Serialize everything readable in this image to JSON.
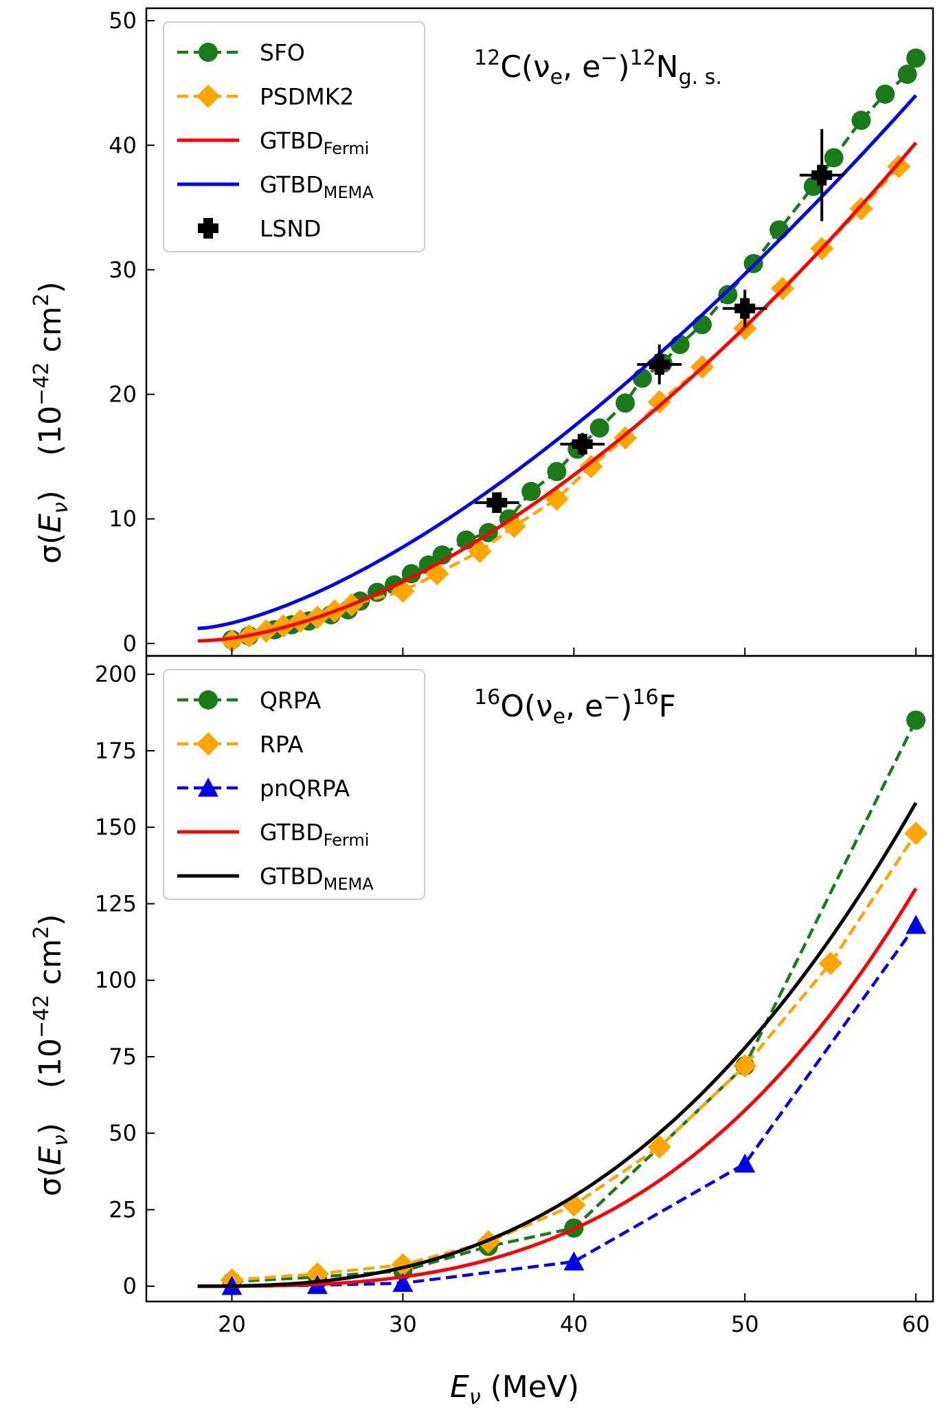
{
  "chart_data": [
    {
      "type": "line",
      "title": "12C(νe, e−)12Ng. s.",
      "title_parts": {
        "mass_a": "12",
        "nucleus_a": "C(",
        "nu": "ν",
        "nu_sub": "e",
        "mid": ", e",
        "minus": "−",
        "close": ")",
        "mass_b": "12",
        "nucleus_b": "N",
        "state": "g. s."
      },
      "ylabel": {
        "left": "σ(",
        "var": "E",
        "var_sub": "ν",
        "right": ")",
        "unit_a": "(10",
        "unit_exp": "−42",
        "unit_b": " cm",
        "unit_exp2": "2",
        "unit_c": ")"
      },
      "xlim": [
        15,
        61
      ],
      "ylim": [
        -1,
        51
      ],
      "yticks": [
        "0",
        "10",
        "20",
        "30",
        "40",
        "50"
      ],
      "grid": false,
      "legend_position": "top-left",
      "series": [
        {
          "name": "SFO",
          "style": "dashed-circle",
          "color": "#1a7a1a",
          "x": [
            20.0,
            21.0,
            22.5,
            23.5,
            24.5,
            25.8,
            26.8,
            27.5,
            28.5,
            29.5,
            30.5,
            31.5,
            32.3,
            33.7,
            35.0,
            36.2,
            37.5,
            39.0,
            40.2,
            41.5,
            43.0,
            44.0,
            45.2,
            46.2,
            47.5,
            49.0,
            50.5,
            52.0,
            54.0,
            55.2,
            56.8,
            58.2,
            59.5,
            60.0
          ],
          "y": [
            0.3,
            0.6,
            1.1,
            1.5,
            1.8,
            2.3,
            2.7,
            3.4,
            4.1,
            4.7,
            5.6,
            6.3,
            7.1,
            8.3,
            8.9,
            10.0,
            12.2,
            13.8,
            15.6,
            17.3,
            19.3,
            21.3,
            22.5,
            24.0,
            25.6,
            28.0,
            30.5,
            33.2,
            36.7,
            39.0,
            42.0,
            44.1,
            45.7,
            47.0
          ]
        },
        {
          "name": "PSDMK2",
          "style": "dashed-diamond",
          "color": "#ffa500",
          "x": [
            20.0,
            21.0,
            22.0,
            23.0,
            24.0,
            25.0,
            26.0,
            27.0,
            30.0,
            32.0,
            34.5,
            36.5,
            39.0,
            41.0,
            43.0,
            45.0,
            47.5,
            50.0,
            52.2,
            54.5,
            56.8,
            59.0
          ],
          "y": [
            0.2,
            0.6,
            1.0,
            1.4,
            1.8,
            2.1,
            2.6,
            3.1,
            4.2,
            5.6,
            7.4,
            9.4,
            11.6,
            14.2,
            16.5,
            19.4,
            22.2,
            25.3,
            28.5,
            31.7,
            34.9,
            38.3
          ]
        },
        {
          "name": "GTBDFermi",
          "style": "solid",
          "color": "#ff0000",
          "x": [
            18,
            60
          ],
          "y0": 0.2,
          "y1": 40.2,
          "p": 1.7
        },
        {
          "name": "GTBDMEMA",
          "style": "solid",
          "color": "#0000ee",
          "x": [
            18,
            60
          ],
          "y0": 1.2,
          "y1": 44.0,
          "p": 1.5
        },
        {
          "name": "LSND",
          "style": "errorbar-plus",
          "color": "#000000",
          "x": [
            35.5,
            40.5,
            45.0,
            50.0,
            54.5
          ],
          "y": [
            11.3,
            16.0,
            22.4,
            26.9,
            37.6
          ],
          "xerr": [
            1.3,
            1.3,
            1.3,
            1.3,
            1.3
          ],
          "yerr": [
            0.8,
            0.9,
            1.6,
            1.5,
            3.7
          ]
        }
      ]
    },
    {
      "type": "line",
      "title": "16O(νe, e−)16F",
      "title_parts": {
        "mass_a": "16",
        "nucleus_a": "O(",
        "nu": "ν",
        "nu_sub": "e",
        "mid": ", e",
        "minus": "−",
        "close": ")",
        "mass_b": "16",
        "nucleus_b": "F"
      },
      "ylabel": {
        "left": "σ(",
        "var": "E",
        "var_sub": "ν",
        "right": ")",
        "unit_a": "(10",
        "unit_exp": "−42",
        "unit_b": " cm",
        "unit_exp2": "2",
        "unit_c": ")"
      },
      "xlabel": {
        "var": "E",
        "var_sub": "ν",
        "unit": " (MeV)"
      },
      "xlim": [
        15,
        61
      ],
      "ylim": [
        -5,
        206
      ],
      "xticks": [
        "20",
        "30",
        "40",
        "50",
        "60"
      ],
      "yticks": [
        "0",
        "25",
        "50",
        "75",
        "100",
        "125",
        "150",
        "175",
        "200"
      ],
      "grid": false,
      "legend_position": "top-left",
      "series": [
        {
          "name": "QRPA",
          "style": "dashed-circle",
          "color": "#1a7a1a",
          "x": [
            20,
            25,
            30,
            35,
            40,
            50,
            60
          ],
          "y": [
            1.5,
            3.0,
            5.0,
            13.0,
            19.0,
            72.0,
            185.0
          ]
        },
        {
          "name": "RPA",
          "style": "dashed-diamond",
          "color": "#ffa500",
          "x": [
            20,
            25,
            30,
            35,
            40,
            45,
            50,
            55,
            60
          ],
          "y": [
            2.0,
            4.0,
            7.0,
            14.5,
            26.5,
            45.5,
            72.0,
            105.5,
            148.0
          ]
        },
        {
          "name": "pnQRPA",
          "style": "dashed-triangle",
          "color": "#0000ee",
          "x": [
            20,
            25,
            30,
            40,
            50,
            60
          ],
          "y": [
            0.0,
            0.3,
            1.0,
            8.0,
            40.0,
            118.0
          ]
        },
        {
          "name": "GTBDFermi",
          "style": "solid",
          "color": "#ff0000",
          "x": [
            18,
            60
          ],
          "y0": 0.0,
          "y1": 130.0,
          "p": 3.0
        },
        {
          "name": "GTBDMEMA",
          "style": "solid",
          "color": "#000000",
          "x": [
            18,
            60
          ],
          "y0": 0.0,
          "y1": 158.0,
          "p": 2.6
        }
      ]
    }
  ],
  "legends": [
    [
      {
        "label": "SFO",
        "sub": ""
      },
      {
        "label": "PSDMK2",
        "sub": ""
      },
      {
        "label": "GTBD",
        "sub": "Fermi"
      },
      {
        "label": "GTBD",
        "sub": "MEMA"
      },
      {
        "label": "LSND",
        "sub": ""
      }
    ],
    [
      {
        "label": "QRPA",
        "sub": ""
      },
      {
        "label": "RPA",
        "sub": ""
      },
      {
        "label": "pnQRPA",
        "sub": ""
      },
      {
        "label": "GTBD",
        "sub": "Fermi"
      },
      {
        "label": "GTBD",
        "sub": "MEMA"
      }
    ]
  ]
}
